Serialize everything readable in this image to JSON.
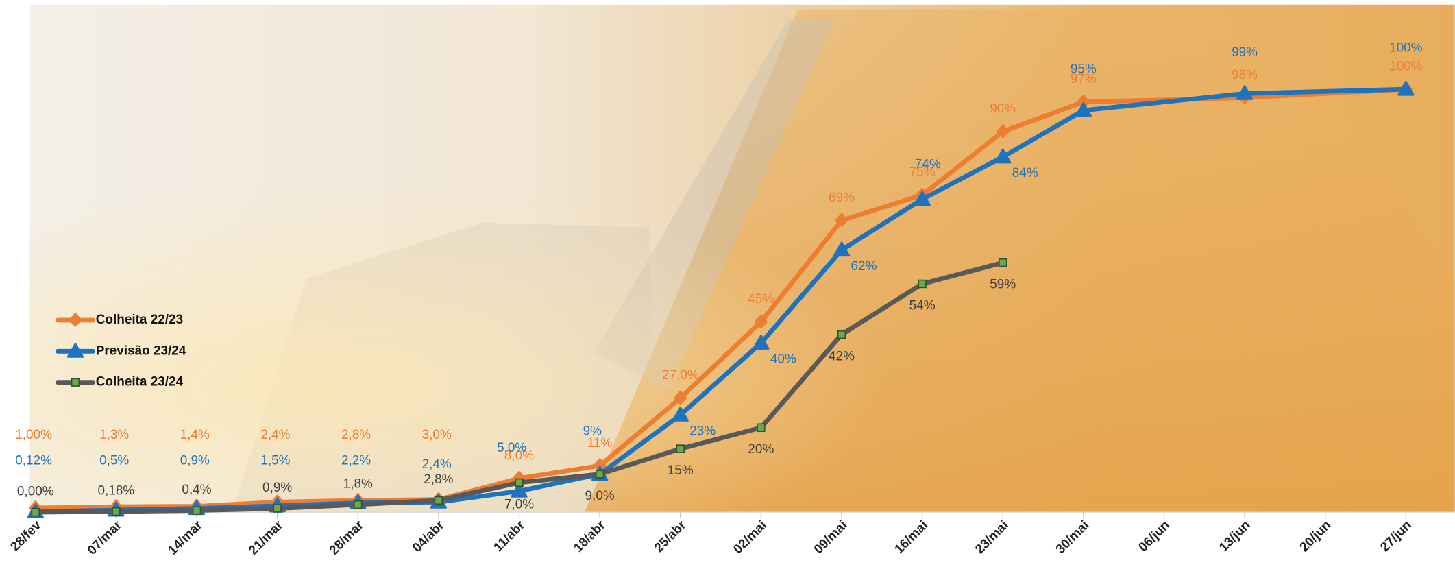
{
  "chart_data": {
    "type": "line",
    "xticks": [
      "28/fev",
      "07/mar",
      "14/mar",
      "21/mar",
      "28/mar",
      "04/abr",
      "11/abr",
      "18/abr",
      "25/abr",
      "02/mai",
      "09/mai",
      "16/mai",
      "23/mai",
      "30/mai",
      "06/jun",
      "13/jun",
      "20/jun",
      "27/jun"
    ],
    "x": [
      "28/fev",
      "07/mar",
      "14/mar",
      "21/mar",
      "28/mar",
      "04/abr",
      "11/abr",
      "18/abr",
      "25/abr",
      "02/mai",
      "09/mai",
      "16/mai",
      "23/mai",
      "30/mai",
      "13/jun",
      "27/jun"
    ],
    "ylim": [
      0,
      120
    ],
    "legend": "left",
    "series": [
      {
        "name": "Colheita 22/23",
        "color": "#ed7d31",
        "marker": "circle",
        "values": [
          1.0,
          1.3,
          1.4,
          2.4,
          2.8,
          3.0,
          8.0,
          11,
          27.0,
          45,
          69,
          75,
          90,
          97,
          98,
          100
        ],
        "value_labels": [
          "1,00%",
          "1,3%",
          "1,4%",
          "2,4%",
          "2,8%",
          "3,0%",
          "8,0%",
          "11%",
          "27,0%",
          "45%",
          "69%",
          "75%",
          "90%",
          "97%",
          "98%",
          "100%"
        ]
      },
      {
        "name": "Previsão 23/24",
        "color": "#1f73bd",
        "marker": "triangle",
        "values": [
          0.12,
          0.5,
          0.9,
          1.5,
          2.2,
          2.4,
          5.0,
          9,
          23,
          40,
          62,
          74,
          84,
          95,
          99,
          100
        ],
        "value_labels": [
          "0,12%",
          "0,5%",
          "0,9%",
          "1,5%",
          "2,2%",
          "2,4%",
          "5,0%",
          "9%",
          "23%",
          "40%",
          "62%",
          "74%",
          "84%",
          "95%",
          "99%",
          "100%"
        ]
      },
      {
        "name": "Colheita 23/24",
        "color": "#595959",
        "marker": "square",
        "values": [
          0.0,
          0.18,
          0.4,
          0.9,
          1.8,
          2.8,
          7.0,
          9.0,
          15,
          20,
          42,
          54,
          59,
          null,
          null,
          null
        ],
        "value_labels": [
          "0,00%",
          "0,18%",
          "0,4%",
          "0,9%",
          "1,8%",
          "2,8%",
          "7,0%",
          "9,0%",
          "15%",
          "20%",
          "42%",
          "54%",
          "59%",
          null,
          null,
          null
        ]
      }
    ]
  }
}
